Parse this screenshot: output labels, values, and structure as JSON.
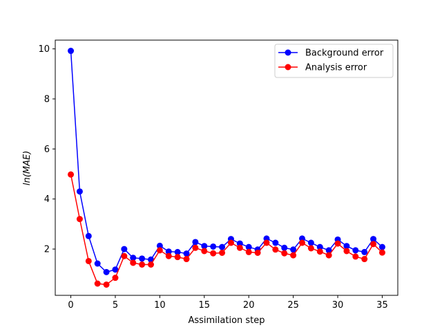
{
  "chart_data": {
    "type": "line",
    "title": "",
    "xlabel": "Assimilation step",
    "ylabel": "ln(MAE)",
    "xlim": [
      -1.75,
      36.75
    ],
    "ylim": [
      0.15,
      10.35
    ],
    "xticks": [
      0,
      5,
      10,
      15,
      20,
      25,
      30,
      35
    ],
    "yticks": [
      2,
      4,
      6,
      8,
      10
    ],
    "grid": false,
    "legend": "top-right",
    "x": [
      0,
      1,
      2,
      3,
      4,
      5,
      6,
      7,
      8,
      9,
      10,
      11,
      12,
      13,
      14,
      15,
      16,
      17,
      18,
      19,
      20,
      21,
      22,
      23,
      24,
      25,
      26,
      27,
      28,
      29,
      30,
      31,
      32,
      33,
      34,
      35
    ],
    "series": [
      {
        "name": "Background error",
        "color": "#0000ff",
        "marker": "circle",
        "values": [
          9.92,
          4.3,
          2.52,
          1.42,
          1.08,
          1.18,
          2.0,
          1.65,
          1.62,
          1.58,
          2.13,
          1.9,
          1.88,
          1.82,
          2.28,
          2.12,
          2.1,
          2.08,
          2.4,
          2.22,
          2.08,
          1.98,
          2.42,
          2.25,
          2.05,
          1.98,
          2.42,
          2.25,
          2.08,
          1.95,
          2.38,
          2.12,
          1.95,
          1.88,
          2.4,
          2.08
        ]
      },
      {
        "name": "Analysis error",
        "color": "#ff0000",
        "marker": "circle",
        "values": [
          4.98,
          3.2,
          1.52,
          0.62,
          0.58,
          0.85,
          1.72,
          1.45,
          1.38,
          1.38,
          1.95,
          1.72,
          1.68,
          1.6,
          2.05,
          1.92,
          1.83,
          1.85,
          2.25,
          2.05,
          1.88,
          1.85,
          2.25,
          1.98,
          1.83,
          1.75,
          2.25,
          2.03,
          1.9,
          1.75,
          2.22,
          1.92,
          1.7,
          1.6,
          2.2,
          1.86
        ]
      }
    ]
  }
}
